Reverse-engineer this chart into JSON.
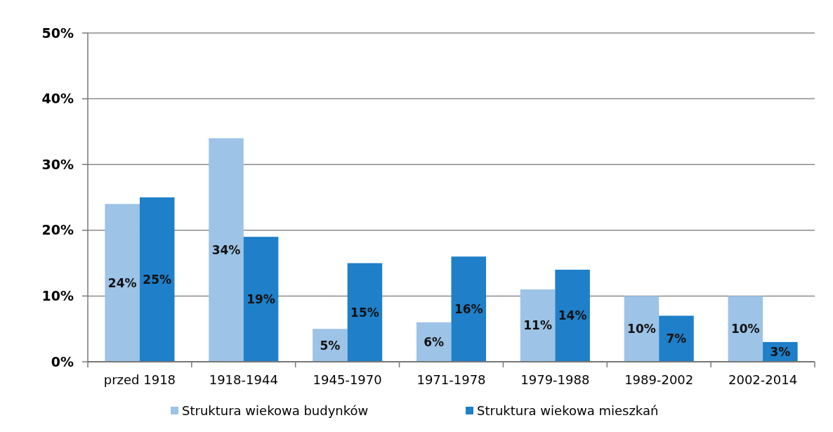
{
  "chart_data": {
    "type": "bar",
    "categories": [
      "przed 1918",
      "1918-1944",
      "1945-1970",
      "1971-1978",
      "1979-1988",
      "1989-2002",
      "2002-2014"
    ],
    "series": [
      {
        "name": "Struktura wiekowa budynków",
        "color": "#9dc3e6",
        "values": [
          24,
          34,
          5,
          6,
          11,
          10,
          10
        ],
        "value_labels": [
          "24%",
          "34%",
          "5%",
          "6%",
          "11%",
          "10%",
          "10%"
        ]
      },
      {
        "name": "Struktura wiekowa mieszkań",
        "color": "#1f7fc8",
        "values": [
          25,
          19,
          15,
          16,
          14,
          7,
          3
        ],
        "value_labels": [
          "25%",
          "19%",
          "15%",
          "16%",
          "14%",
          "7%",
          "3%"
        ]
      }
    ],
    "ylim": [
      0,
      50
    ],
    "yticks": [
      {
        "value": 0,
        "label": "0%"
      },
      {
        "value": 10,
        "label": "10%"
      },
      {
        "value": 20,
        "label": "20%"
      },
      {
        "value": 30,
        "label": "30%"
      },
      {
        "value": 40,
        "label": "40%"
      },
      {
        "value": 50,
        "label": "50%"
      }
    ],
    "grid": "y",
    "legend": "bottom"
  }
}
